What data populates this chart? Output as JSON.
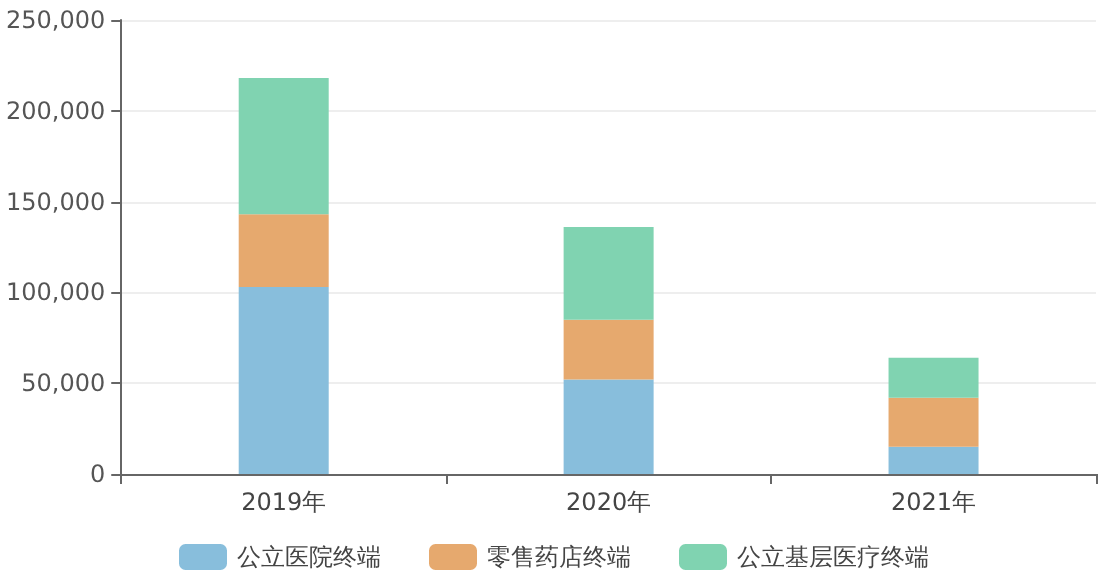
{
  "chart_data": {
    "type": "bar",
    "stacked": true,
    "categories": [
      "2019年",
      "2020年",
      "2021年"
    ],
    "series": [
      {
        "name": "公立医院终端",
        "color": "#88bedc",
        "values": [
          103000,
          52000,
          15000
        ]
      },
      {
        "name": "零售药店终端",
        "color": "#e6a96e",
        "values": [
          40000,
          33000,
          27000
        ]
      },
      {
        "name": "公立基层医疗终端",
        "color": "#80d3b1",
        "values": [
          75000,
          51000,
          22000
        ]
      }
    ],
    "ylim": [
      0,
      250000
    ],
    "yticks": [
      0,
      {
        "value": 50000,
        "label": "50,000"
      },
      {
        "value": 100000,
        "label": "100,000"
      },
      {
        "value": 150000,
        "label": "150,000"
      },
      {
        "value": 200000,
        "label": "200,000"
      },
      {
        "value": 250000,
        "label": "250,000"
      }
    ],
    "grid": "y",
    "legend": "bottom"
  }
}
